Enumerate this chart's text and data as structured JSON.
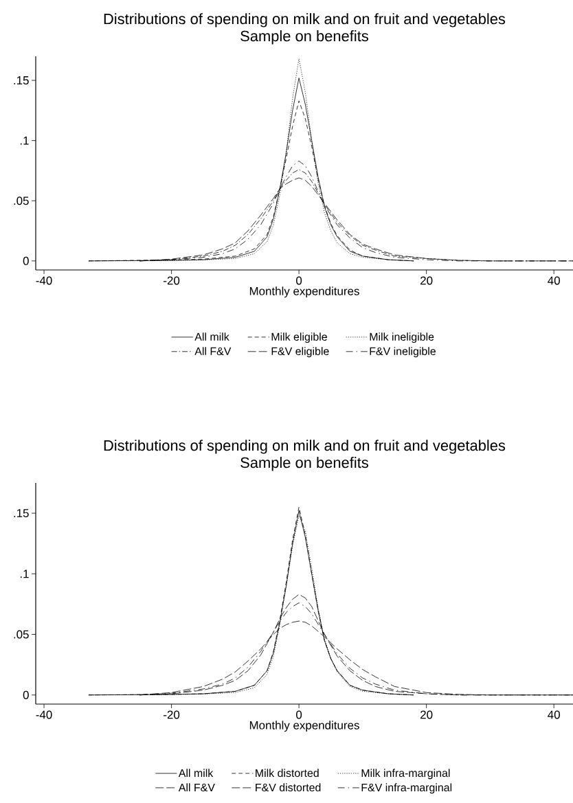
{
  "chart_data": [
    {
      "type": "line",
      "title": "Distributions of spending on milk and on fruit and vegetables",
      "subtitle": "Sample on benefits",
      "xlabel": "Monthly expenditures",
      "xlim": [
        -41.3,
        43
      ],
      "ylim": [
        -0.0075,
        0.17
      ],
      "xticks": [
        -40,
        -20,
        0,
        20,
        40
      ],
      "yticks": [
        0,
        {
          "value": 0.05,
          "label": ".05"
        },
        {
          "value": 0.1,
          "label": ".1"
        },
        {
          "value": 0.15,
          "label": ".15"
        }
      ],
      "legend": "bottom",
      "series": [
        {
          "name": "All milk",
          "color": "#000000",
          "line_style": "solid",
          "x": [
            -33,
            -20,
            -15,
            -10,
            -7,
            -5,
            -4,
            -3,
            -2,
            -1,
            0,
            1,
            2,
            3,
            4,
            5,
            6,
            8,
            10,
            14,
            18
          ],
          "values": [
            0,
            0.0005,
            0.001,
            0.003,
            0.008,
            0.02,
            0.035,
            0.06,
            0.09,
            0.125,
            0.152,
            0.13,
            0.1,
            0.07,
            0.045,
            0.03,
            0.02,
            0.008,
            0.004,
            0.001,
            0
          ]
        },
        {
          "name": "Milk eligible",
          "color": "#000000",
          "line_style": "dashed",
          "x": [
            -33,
            -20,
            -15,
            -10,
            -7,
            -5,
            -4,
            -3,
            -2,
            -1,
            0,
            1,
            2,
            3,
            4,
            5,
            6,
            8,
            10,
            14,
            18
          ],
          "values": [
            0,
            0.0008,
            0.0015,
            0.004,
            0.01,
            0.022,
            0.037,
            0.06,
            0.085,
            0.112,
            0.133,
            0.118,
            0.095,
            0.068,
            0.046,
            0.031,
            0.021,
            0.009,
            0.004,
            0.001,
            0
          ]
        },
        {
          "name": "Milk ineligible",
          "color": "#000000",
          "line_style": "dotted",
          "x": [
            -33,
            -20,
            -15,
            -10,
            -7,
            -5,
            -4,
            -3,
            -2,
            -1,
            0,
            1,
            2,
            3,
            4,
            5,
            6,
            8,
            10,
            14,
            18
          ],
          "values": [
            0,
            0.0003,
            0.0008,
            0.002,
            0.006,
            0.016,
            0.03,
            0.055,
            0.09,
            0.135,
            0.168,
            0.14,
            0.1,
            0.065,
            0.04,
            0.025,
            0.015,
            0.006,
            0.003,
            0.001,
            0
          ]
        },
        {
          "name": "All F&V",
          "color": "#000000",
          "line_style": "dashdot",
          "x": [
            -25,
            -20,
            -15,
            -12,
            -10,
            -8,
            -6,
            -4,
            -3,
            -2,
            -1,
            0,
            1,
            2,
            4,
            6,
            8,
            10,
            12,
            15,
            20,
            25,
            30,
            43
          ],
          "values": [
            0,
            0.001,
            0.004,
            0.008,
            0.013,
            0.022,
            0.035,
            0.05,
            0.06,
            0.067,
            0.073,
            0.076,
            0.073,
            0.066,
            0.047,
            0.032,
            0.021,
            0.013,
            0.009,
            0.004,
            0.002,
            0.0005,
            0,
            0
          ]
        },
        {
          "name": "F&V eligible",
          "color": "#000000",
          "line_style": "longdashed",
          "x": [
            -25,
            -20,
            -15,
            -12,
            -10,
            -8,
            -6,
            -4,
            -3,
            -2,
            -1,
            0,
            1,
            2,
            4,
            6,
            8,
            10,
            12,
            15,
            20,
            25,
            30,
            43
          ],
          "values": [
            0,
            0.0015,
            0.005,
            0.01,
            0.015,
            0.025,
            0.038,
            0.052,
            0.06,
            0.064,
            0.067,
            0.069,
            0.067,
            0.062,
            0.048,
            0.034,
            0.022,
            0.014,
            0.01,
            0.005,
            0.002,
            0.0005,
            0,
            0
          ]
        },
        {
          "name": "F&V ineligible",
          "color": "#000000",
          "line_style": "loosedashdot",
          "x": [
            -25,
            -20,
            -15,
            -12,
            -10,
            -8,
            -6,
            -4,
            -3,
            -2,
            -1,
            0,
            1,
            2,
            4,
            6,
            8,
            10,
            12,
            15,
            20,
            25,
            30,
            43
          ],
          "values": [
            0,
            0.001,
            0.003,
            0.006,
            0.01,
            0.018,
            0.03,
            0.048,
            0.06,
            0.07,
            0.079,
            0.083,
            0.079,
            0.07,
            0.046,
            0.03,
            0.019,
            0.011,
            0.007,
            0.003,
            0.001,
            0,
            0,
            0
          ]
        }
      ]
    },
    {
      "type": "line",
      "title": "Distributions of spending on milk and on fruit and vegetables",
      "subtitle": "Sample on benefits",
      "xlabel": "Monthly expenditures",
      "xlim": [
        -41.3,
        43
      ],
      "ylim": [
        -0.0075,
        0.175
      ],
      "xticks": [
        -40,
        -20,
        0,
        20,
        40
      ],
      "yticks": [
        0,
        {
          "value": 0.05,
          "label": ".05"
        },
        {
          "value": 0.1,
          "label": ".1"
        },
        {
          "value": 0.15,
          "label": ".15"
        }
      ],
      "legend": "bottom",
      "series": [
        {
          "name": "All milk",
          "color": "#000000",
          "line_style": "solid",
          "x": [
            -33,
            -20,
            -15,
            -10,
            -7,
            -5,
            -4,
            -3,
            -2,
            -1,
            0,
            1,
            2,
            3,
            4,
            5,
            6,
            8,
            10,
            14,
            18
          ],
          "values": [
            0,
            0.0005,
            0.001,
            0.003,
            0.008,
            0.02,
            0.035,
            0.06,
            0.09,
            0.125,
            0.152,
            0.13,
            0.1,
            0.07,
            0.045,
            0.03,
            0.02,
            0.008,
            0.004,
            0.001,
            0
          ]
        },
        {
          "name": "Milk distorted",
          "color": "#000000",
          "line_style": "dashed",
          "x": [
            -33,
            -20,
            -15,
            -10,
            -7,
            -5,
            -4,
            -3,
            -2,
            -1,
            0,
            1,
            2,
            3,
            4,
            5,
            6,
            8,
            10,
            14,
            18
          ],
          "values": [
            0,
            0.0005,
            0.001,
            0.003,
            0.008,
            0.02,
            0.036,
            0.062,
            0.093,
            0.128,
            0.155,
            0.132,
            0.1,
            0.07,
            0.045,
            0.03,
            0.02,
            0.008,
            0.004,
            0.001,
            0
          ]
        },
        {
          "name": "Milk infra-marginal",
          "color": "#000000",
          "line_style": "dotted",
          "x": [
            -33,
            -20,
            -15,
            -10,
            -7,
            -5,
            -4,
            -3,
            -2,
            -1,
            0,
            1,
            2,
            3,
            4,
            5,
            6,
            8,
            10,
            14,
            18
          ],
          "values": [
            0,
            0.0003,
            0.0008,
            0.002,
            0.006,
            0.017,
            0.032,
            0.058,
            0.09,
            0.123,
            0.148,
            0.135,
            0.105,
            0.072,
            0.046,
            0.03,
            0.019,
            0.007,
            0.003,
            0.001,
            0
          ]
        },
        {
          "name": "All F&V",
          "color": "#000000",
          "line_style": "longdashed",
          "x": [
            -25,
            -20,
            -15,
            -12,
            -10,
            -8,
            -6,
            -4,
            -3,
            -2,
            -1,
            0,
            1,
            2,
            4,
            6,
            8,
            10,
            12,
            15,
            20,
            25,
            30,
            43
          ],
          "values": [
            0,
            0.001,
            0.004,
            0.008,
            0.012,
            0.02,
            0.033,
            0.052,
            0.063,
            0.072,
            0.079,
            0.083,
            0.08,
            0.073,
            0.05,
            0.032,
            0.02,
            0.012,
            0.007,
            0.003,
            0.001,
            0,
            0,
            0
          ]
        },
        {
          "name": "F&V distorted",
          "color": "#000000",
          "line_style": "longdashed",
          "x": [
            -25,
            -20,
            -15,
            -12,
            -10,
            -8,
            -6,
            -4,
            -3,
            -2,
            -1,
            0,
            1,
            2,
            4,
            6,
            8,
            10,
            12,
            15,
            20,
            25,
            30,
            43
          ],
          "values": [
            0,
            0.002,
            0.007,
            0.013,
            0.019,
            0.028,
            0.038,
            0.05,
            0.055,
            0.058,
            0.06,
            0.061,
            0.06,
            0.057,
            0.048,
            0.038,
            0.029,
            0.021,
            0.015,
            0.007,
            0.002,
            0.0005,
            0,
            0
          ]
        },
        {
          "name": "F&V infra-marginal",
          "color": "#000000",
          "line_style": "loosedashdot",
          "x": [
            -25,
            -20,
            -15,
            -12,
            -10,
            -8,
            -6,
            -4,
            -3,
            -2,
            -1,
            0,
            1,
            2,
            4,
            6,
            8,
            10,
            12,
            15,
            20,
            25,
            30,
            43
          ],
          "values": [
            0,
            0.0015,
            0.005,
            0.009,
            0.014,
            0.023,
            0.036,
            0.052,
            0.061,
            0.068,
            0.073,
            0.076,
            0.073,
            0.067,
            0.05,
            0.034,
            0.022,
            0.014,
            0.009,
            0.004,
            0.001,
            0,
            0,
            0
          ]
        }
      ]
    }
  ]
}
